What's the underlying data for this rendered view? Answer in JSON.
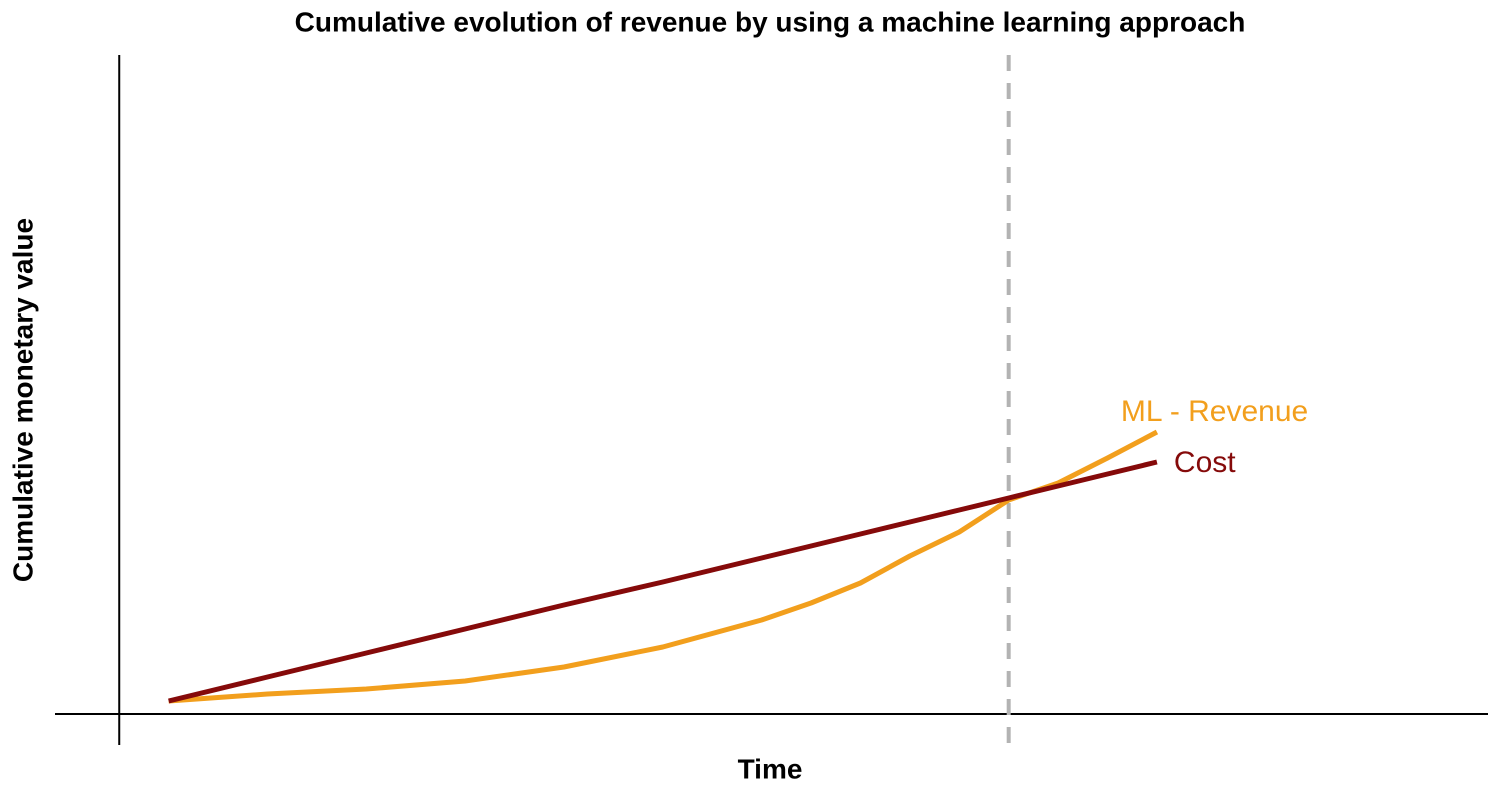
{
  "chart_data": {
    "type": "line",
    "title": "Cumulative evolution of revenue by using a machine learning approach",
    "x_label": "Time",
    "y_label": "Cumulative monetary value",
    "x": [
      1,
      3,
      5,
      7,
      9,
      11,
      13,
      14,
      15,
      16,
      17,
      18,
      19,
      20,
      21
    ],
    "series": [
      {
        "name": "ML - Revenue",
        "color": "#f29f1d",
        "values": [
          1.3,
          2.0,
          2.5,
          3.3,
          4.7,
          6.7,
          9.4,
          11.1,
          13.1,
          15.8,
          18.2,
          21.4,
          23.1,
          25.6,
          28.2
        ]
      },
      {
        "name": "Cost",
        "color": "#850a0a",
        "values": [
          1.3,
          3.7,
          6.1,
          8.5,
          10.9,
          13.2,
          15.6,
          16.8,
          18.0,
          19.2,
          20.4,
          21.6,
          22.8,
          24.0,
          25.2
        ]
      }
    ],
    "xlim": [
      -1.3,
      27.7
    ],
    "ylim": [
      -3.1,
      65.9
    ],
    "vline": 18,
    "vline_color": "#b3b3b3",
    "grid": false
  }
}
